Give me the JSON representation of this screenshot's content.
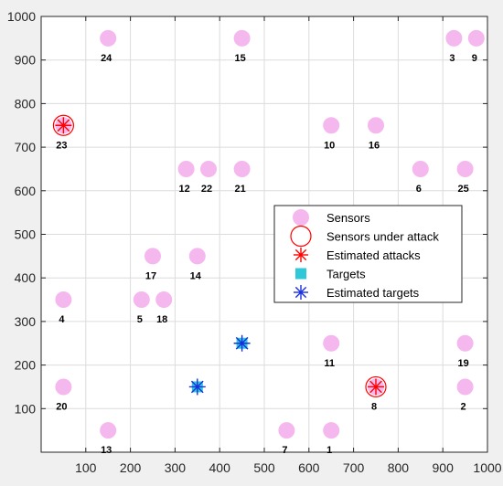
{
  "chart_data": {
    "type": "scatter",
    "title": "",
    "xlabel": "",
    "ylabel": "",
    "xlim": [
      0,
      1000
    ],
    "ylim": [
      0,
      1000
    ],
    "xticks": [
      100,
      200,
      300,
      400,
      500,
      600,
      700,
      800,
      900,
      1000
    ],
    "yticks": [
      100,
      200,
      300,
      400,
      500,
      600,
      700,
      800,
      900,
      1000
    ],
    "grid": true,
    "legend_position": "east",
    "colors": {
      "sensor": "#f5b8ee",
      "attack_circle": "#ff0000",
      "estimated_attack": "#ff0000",
      "target": "#2ec8d8",
      "estimated_target": "#1a2ee0"
    },
    "legend": [
      {
        "label": "Sensors",
        "marker": "sensor"
      },
      {
        "label": "Sensors under attack",
        "marker": "attack-circle"
      },
      {
        "label": "Estimated attacks",
        "marker": "estimated-attack"
      },
      {
        "label": "Targets",
        "marker": "target"
      },
      {
        "label": "Estimated targets",
        "marker": "estimated-target"
      }
    ],
    "sensors": [
      {
        "id": "1",
        "x": 650,
        "y": 50
      },
      {
        "id": "2",
        "x": 950,
        "y": 150
      },
      {
        "id": "3",
        "x": 925,
        "y": 950
      },
      {
        "id": "4",
        "x": 50,
        "y": 350
      },
      {
        "id": "5",
        "x": 225,
        "y": 350
      },
      {
        "id": "6",
        "x": 850,
        "y": 650
      },
      {
        "id": "7",
        "x": 550,
        "y": 50
      },
      {
        "id": "8",
        "x": 750,
        "y": 150
      },
      {
        "id": "9",
        "x": 975,
        "y": 950
      },
      {
        "id": "10",
        "x": 650,
        "y": 750
      },
      {
        "id": "11",
        "x": 650,
        "y": 250
      },
      {
        "id": "12",
        "x": 325,
        "y": 650
      },
      {
        "id": "13",
        "x": 150,
        "y": 50
      },
      {
        "id": "14",
        "x": 350,
        "y": 450
      },
      {
        "id": "15",
        "x": 450,
        "y": 950
      },
      {
        "id": "16",
        "x": 750,
        "y": 750
      },
      {
        "id": "17",
        "x": 250,
        "y": 450
      },
      {
        "id": "18",
        "x": 275,
        "y": 350
      },
      {
        "id": "19",
        "x": 950,
        "y": 250
      },
      {
        "id": "20",
        "x": 50,
        "y": 150
      },
      {
        "id": "21",
        "x": 450,
        "y": 650
      },
      {
        "id": "22",
        "x": 375,
        "y": 650
      },
      {
        "id": "23",
        "x": 50,
        "y": 750
      },
      {
        "id": "24",
        "x": 150,
        "y": 950
      },
      {
        "id": "25",
        "x": 950,
        "y": 650
      }
    ],
    "sensors_under_attack": [
      {
        "x": 50,
        "y": 750
      },
      {
        "x": 750,
        "y": 150
      }
    ],
    "estimated_attacks": [
      {
        "x": 50,
        "y": 750
      },
      {
        "x": 750,
        "y": 150
      }
    ],
    "targets": [
      {
        "x": 350,
        "y": 150
      },
      {
        "x": 450,
        "y": 250
      }
    ],
    "estimated_targets": [
      {
        "x": 350,
        "y": 150
      },
      {
        "x": 450,
        "y": 250
      }
    ]
  }
}
